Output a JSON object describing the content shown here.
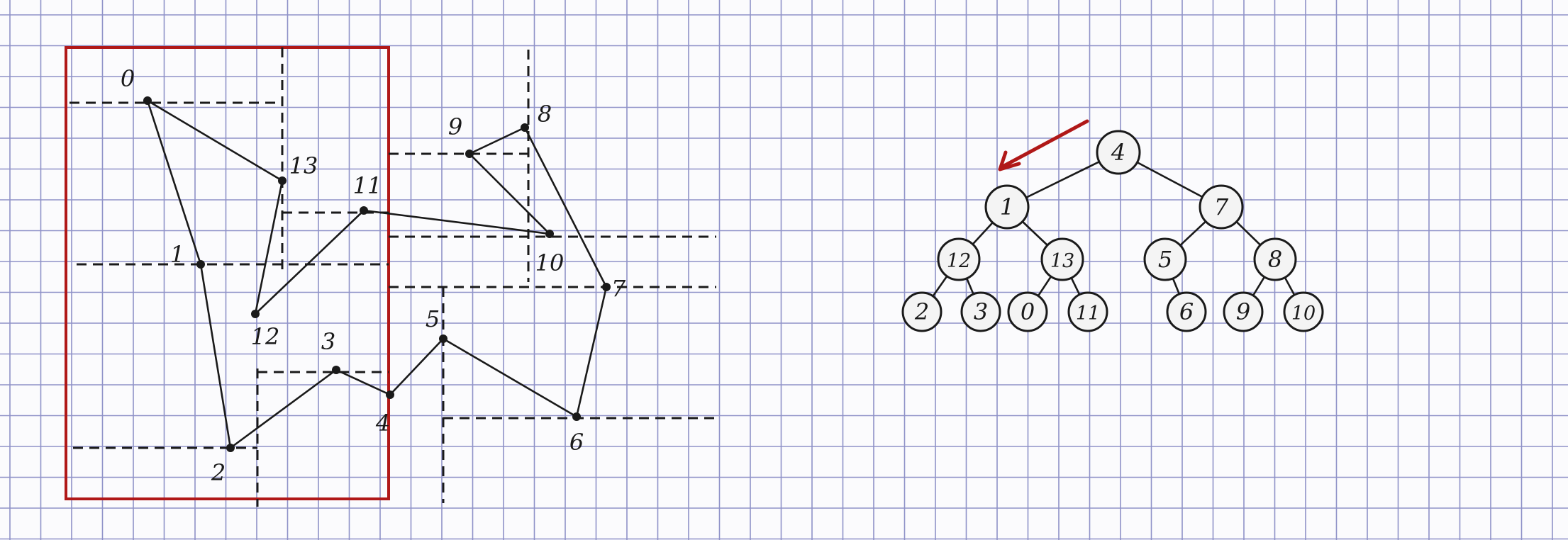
{
  "colors": {
    "paper": "#fbfbfd",
    "grid": "#8f92c8",
    "ink": "#1a1a1a",
    "frame": "#b01818",
    "arrow": "#b01818",
    "node_fill": "#f4f4f4"
  },
  "drawing": {
    "points": [
      {
        "id": 0,
        "label": "0"
      },
      {
        "id": 1,
        "label": "1"
      },
      {
        "id": 2,
        "label": "2"
      },
      {
        "id": 3,
        "label": "3"
      },
      {
        "id": 4,
        "label": "4"
      },
      {
        "id": 5,
        "label": "5"
      },
      {
        "id": 6,
        "label": "6"
      },
      {
        "id": 7,
        "label": "7"
      },
      {
        "id": 8,
        "label": "8"
      },
      {
        "id": 9,
        "label": "9"
      },
      {
        "id": 10,
        "label": "10"
      },
      {
        "id": 11,
        "label": "11"
      },
      {
        "id": 12,
        "label": "12"
      },
      {
        "id": 13,
        "label": "13"
      }
    ],
    "path_order": [
      0,
      1,
      2,
      3,
      4,
      5,
      6,
      7,
      8,
      9,
      10,
      11,
      12,
      13,
      0
    ]
  },
  "tree": {
    "root": "4",
    "nodes": [
      {
        "id": "n4",
        "label": "4",
        "parent": null
      },
      {
        "id": "n1",
        "label": "1",
        "parent": "n4"
      },
      {
        "id": "n7",
        "label": "7",
        "parent": "n4"
      },
      {
        "id": "n12",
        "label": "12",
        "parent": "n1"
      },
      {
        "id": "n13",
        "label": "13",
        "parent": "n1"
      },
      {
        "id": "n5",
        "label": "5",
        "parent": "n7"
      },
      {
        "id": "n8",
        "label": "8",
        "parent": "n7"
      },
      {
        "id": "n2",
        "label": "2",
        "parent": "n12"
      },
      {
        "id": "n3",
        "label": "3",
        "parent": "n12"
      },
      {
        "id": "n0",
        "label": "0",
        "parent": "n13"
      },
      {
        "id": "n11",
        "label": "11",
        "parent": "n13"
      },
      {
        "id": "n6",
        "label": "6",
        "parent": "n5"
      },
      {
        "id": "n9",
        "label": "9",
        "parent": "n8"
      },
      {
        "id": "n10",
        "label": "10",
        "parent": "n8"
      }
    ]
  }
}
